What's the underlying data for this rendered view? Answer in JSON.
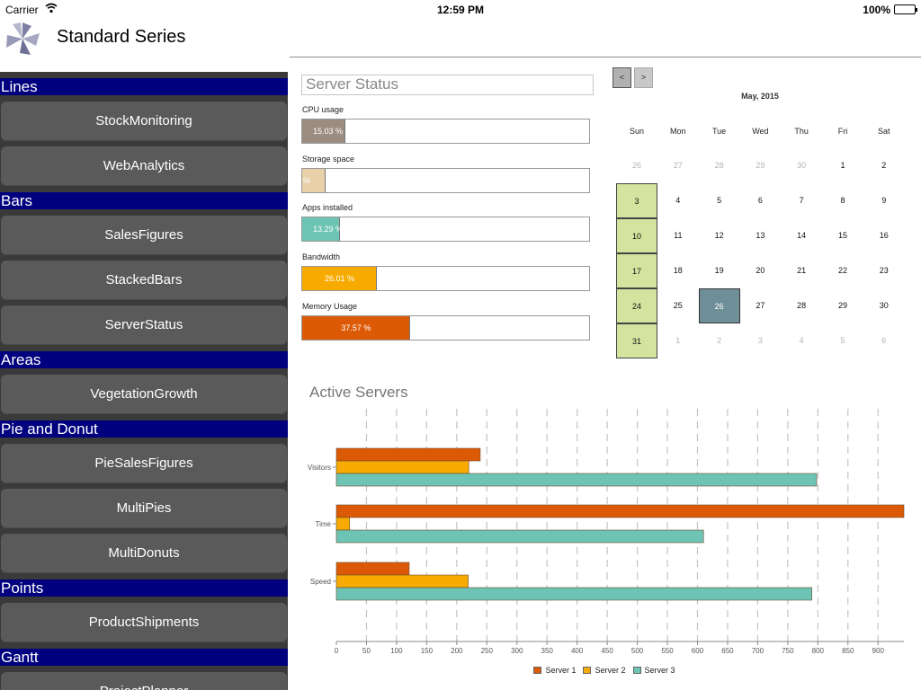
{
  "status_bar": {
    "carrier": "Carrier",
    "time": "12:59 PM",
    "battery": "100%"
  },
  "header": {
    "title": "Standard Series",
    "logo_icon": "pinwheel-logo-icon"
  },
  "sidebar": {
    "sections": [
      {
        "title": "Lines",
        "items": [
          "StockMonitoring",
          "WebAnalytics"
        ]
      },
      {
        "title": "Bars",
        "items": [
          "SalesFigures",
          "StackedBars",
          "ServerStatus"
        ]
      },
      {
        "title": "Areas",
        "items": [
          "VegetationGrowth"
        ]
      },
      {
        "title": "Pie and Donut",
        "items": [
          "PieSalesFigures",
          "MultiPies",
          "MultiDonuts"
        ]
      },
      {
        "title": "Points",
        "items": [
          "ProductShipments"
        ]
      },
      {
        "title": "Gantt",
        "items": [
          "ProjectPlanner"
        ]
      }
    ]
  },
  "server_status": {
    "title": "Server Status",
    "meters": [
      {
        "label": "CPU usage",
        "value_text": "15.03 %",
        "percent": 15.03,
        "color": "#9b8e80"
      },
      {
        "label": "Storage space",
        "value_text": "%",
        "percent": 8.2,
        "color": "#e8d0a8"
      },
      {
        "label": "Apps installed",
        "value_text": "13.29 %",
        "percent": 13.29,
        "color": "#6dc4b4"
      },
      {
        "label": "Bandwidth",
        "value_text": "26.01 %",
        "percent": 26.01,
        "color": "#f7ab00"
      },
      {
        "label": "Memory Usage",
        "value_text": "37.57 %",
        "percent": 37.57,
        "color": "#dc5a05"
      }
    ]
  },
  "calendar": {
    "prev_label": "<",
    "next_label": ">",
    "month": "May, 2015",
    "weekdays": [
      "Sun",
      "Mon",
      "Tue",
      "Wed",
      "Thu",
      "Fri",
      "Sat"
    ],
    "weeks": [
      [
        "26",
        "27",
        "28",
        "29",
        "30",
        "1",
        "2"
      ],
      [
        "3",
        "4",
        "5",
        "6",
        "7",
        "8",
        "9"
      ],
      [
        "10",
        "11",
        "12",
        "13",
        "14",
        "15",
        "16"
      ],
      [
        "17",
        "18",
        "19",
        "20",
        "21",
        "22",
        "23"
      ],
      [
        "24",
        "25",
        "26",
        "27",
        "28",
        "29",
        "30"
      ],
      [
        "31",
        "1",
        "2",
        "3",
        "4",
        "5",
        "6"
      ]
    ],
    "today": "26",
    "colors": {
      "sunday": "#d4e39e",
      "today": "#6e8f98"
    }
  },
  "chart_data": {
    "type": "bar",
    "orientation": "horizontal",
    "title": "Active Servers",
    "categories": [
      "Visitors",
      "Time",
      "Speed"
    ],
    "series": [
      {
        "name": "Server 1",
        "color": "#dc5a05",
        "values": [
          239,
          943,
          121
        ]
      },
      {
        "name": "Server 2",
        "color": "#f7ab00",
        "values": [
          220,
          22,
          219
        ]
      },
      {
        "name": "Server 3",
        "color": "#6dc4b4",
        "values": [
          798,
          610,
          790
        ]
      }
    ],
    "xlim": [
      0,
      943
    ],
    "xticks": [
      "0",
      "50",
      "100",
      "150",
      "200",
      "250",
      "300",
      "350",
      "400",
      "450",
      "500",
      "550",
      "600",
      "650",
      "700",
      "750",
      "800",
      "850",
      "900"
    ],
    "grid": true,
    "legend": "bottom"
  }
}
